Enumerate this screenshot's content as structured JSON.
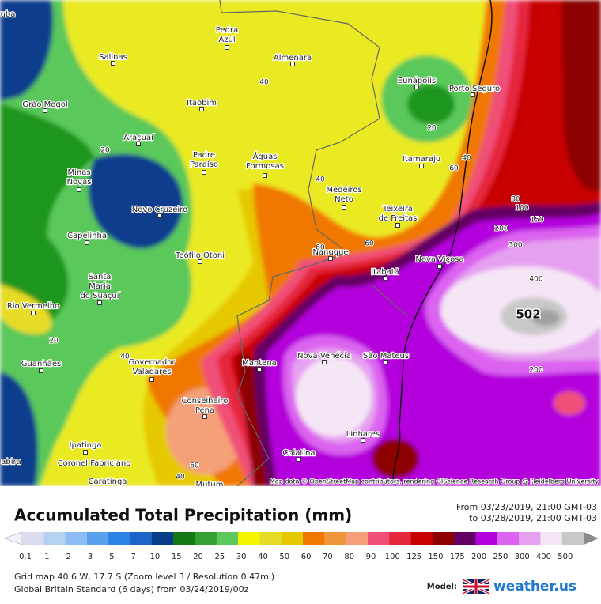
{
  "map": {
    "places": [
      {
        "lines": [
          "uba"
        ]
      },
      {
        "lines": [
          "Pedra",
          "Azul"
        ]
      },
      {
        "lines": [
          "Salinas"
        ]
      },
      {
        "lines": [
          "Almenara"
        ]
      },
      {
        "lines": [
          "Grão Mogol"
        ]
      },
      {
        "lines": [
          "Itaobim"
        ]
      },
      {
        "lines": [
          "Eunápolis"
        ]
      },
      {
        "lines": [
          "Porto Seguro"
        ]
      },
      {
        "lines": [
          "Araçuaí"
        ]
      },
      {
        "lines": [
          "Padre",
          "Paraíso"
        ]
      },
      {
        "lines": [
          "Águas",
          "Formosas"
        ]
      },
      {
        "lines": [
          "Itamaraju"
        ]
      },
      {
        "lines": [
          "Minas",
          "Novas"
        ]
      },
      {
        "lines": [
          "Medeiros",
          "Neto"
        ]
      },
      {
        "lines": [
          "Teixeira",
          "de Freitas"
        ]
      },
      {
        "lines": [
          "Novo Cruzeiro"
        ]
      },
      {
        "lines": [
          "Capelinha"
        ]
      },
      {
        "lines": [
          "Nanuque"
        ]
      },
      {
        "lines": [
          "Nova Viçosa"
        ]
      },
      {
        "lines": [
          "Teófilo Otoni"
        ]
      },
      {
        "lines": [
          "Itabatã"
        ]
      },
      {
        "lines": [
          "Santa",
          "Maria",
          "do Suaçuí"
        ]
      },
      {
        "lines": [
          "Rio Vermelho"
        ]
      },
      {
        "lines": [
          "Guanhães"
        ]
      },
      {
        "lines": [
          "Nova Venécia"
        ]
      },
      {
        "lines": [
          "São Mateus"
        ]
      },
      {
        "lines": [
          "Mantena"
        ]
      },
      {
        "lines": [
          "Governador",
          "Valadares"
        ]
      },
      {
        "lines": [
          "Conselheiro",
          "Pena"
        ]
      },
      {
        "lines": [
          "Linhares"
        ]
      },
      {
        "lines": [
          "Ipatinga"
        ]
      },
      {
        "lines": [
          "Colatina"
        ]
      },
      {
        "lines": [
          "Coronel Fabriciano"
        ]
      },
      {
        "lines": [
          "abira"
        ]
      },
      {
        "lines": [
          "Caratinga"
        ]
      },
      {
        "lines": [
          "Mutum"
        ]
      }
    ],
    "contour_labels": [
      "40",
      "20",
      "20",
      "60",
      "40",
      "40",
      "80",
      "100",
      "150",
      "200",
      "300",
      "400",
      "502",
      "200",
      "60",
      "80",
      "40",
      "20",
      "60",
      "40"
    ],
    "attribution": "Map data © OpenStreetMap contributors, rendering GIScience Research Group @ Heidelberg University"
  },
  "footer": {
    "title": "Accumulated Total Precipitation (mm)",
    "from": "From 03/23/2019, 21:00 GMT-03",
    "to": "to 03/28/2019, 21:00 GMT-03",
    "legend": {
      "labels": [
        "0.1",
        "1",
        "2",
        "3",
        "5",
        "7",
        "10",
        "15",
        "20",
        "25",
        "30",
        "40",
        "50",
        "60",
        "70",
        "80",
        "90",
        "100",
        "125",
        "150",
        "175",
        "200",
        "250",
        "300",
        "400",
        "500"
      ],
      "colors": [
        "#dcdcf0",
        "#b4d2f0",
        "#8cbef5",
        "#5aa0f0",
        "#2d82e6",
        "#1e64c8",
        "#0a3c8c",
        "#147814",
        "#32a032",
        "#5ac85a",
        "#f5f500",
        "#e6dc28",
        "#e6c800",
        "#f07800",
        "#f0963c",
        "#f5a078",
        "#f05078",
        "#e6283c",
        "#c80000",
        "#8c0000",
        "#640064",
        "#b400dc",
        "#dc64f0",
        "#e6a0f0",
        "#f5e6f5",
        "#c8c8c8"
      ]
    },
    "grid_info": "Grid map 40.6 W, 17.7 S (Zoom level 3 / Resolution 0.47mi)",
    "model_info": "Global Britain Standard (6 days) from 03/24/2019/00z",
    "model_label": "Model:",
    "brand": "weather.us"
  }
}
